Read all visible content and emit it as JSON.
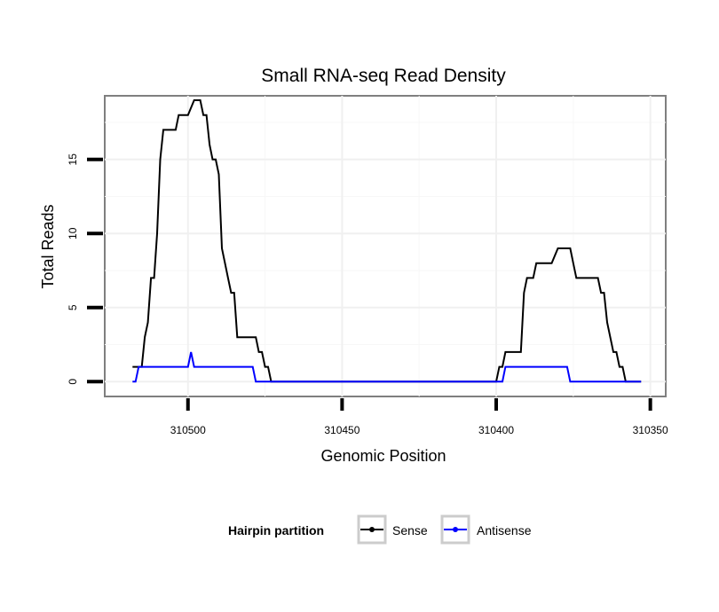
{
  "chart_data": {
    "type": "line",
    "title": "Small RNA-seq Read Density",
    "xlabel": "Genomic Position",
    "ylabel": "Total Reads",
    "x_reversed": true,
    "xlim": [
      310527,
      310345
    ],
    "ylim": [
      -1,
      19.3
    ],
    "xticks": [
      310500,
      310450,
      310400,
      310350
    ],
    "xtick_labels": [
      "310500",
      "310450",
      "310400",
      "310350"
    ],
    "yticks": [
      0,
      5,
      10,
      15
    ],
    "ytick_labels": [
      "0",
      "5",
      "10",
      "15"
    ],
    "grid": true,
    "legend": {
      "title": "Hairpin partition",
      "position": "bottom",
      "entries": [
        "Sense",
        "Antisense"
      ]
    },
    "series": [
      {
        "name": "Sense",
        "color": "#000000",
        "x": [
          310518,
          310516,
          310515,
          310514,
          310513,
          310512,
          310511,
          310510,
          310509,
          310508,
          310506,
          310504,
          310503,
          310502,
          310500,
          310498,
          310497,
          310496,
          310495,
          310494,
          310493,
          310492,
          310491,
          310490,
          310489,
          310487,
          310486,
          310485,
          310484,
          310482,
          310481,
          310480,
          310478,
          310477,
          310476,
          310475,
          310474,
          310473,
          310400,
          310399,
          310398,
          310397,
          310396,
          310394,
          310393,
          310392,
          310391,
          310390,
          310388,
          310387,
          310386,
          310385,
          310383,
          310382,
          310380,
          310378,
          310377,
          310376,
          310375,
          310374,
          310373,
          310372,
          310371,
          310370,
          310368,
          310367,
          310366,
          310365,
          310364,
          310363,
          310362,
          310361,
          310360,
          310359,
          310358,
          310355,
          310353
        ],
        "y": [
          1,
          1,
          1,
          3,
          4,
          7,
          7,
          10,
          15,
          17,
          17,
          17,
          18,
          18,
          18,
          19,
          19,
          19,
          18,
          18,
          16,
          15,
          15,
          14,
          9,
          7,
          6,
          6,
          3,
          3,
          3,
          3,
          3,
          2,
          2,
          1,
          1,
          0,
          0,
          1,
          1,
          2,
          2,
          2,
          2,
          2,
          6,
          7,
          7,
          8,
          8,
          8,
          8,
          8,
          9,
          9,
          9,
          9,
          8,
          7,
          7,
          7,
          7,
          7,
          7,
          7,
          6,
          6,
          4,
          3,
          2,
          2,
          1,
          1,
          0,
          0,
          0
        ]
      },
      {
        "name": "Antisense",
        "color": "#0000ff",
        "x": [
          310518,
          310517,
          310516,
          310515,
          310514,
          310513,
          310512,
          310510,
          310508,
          310506,
          310504,
          310502,
          310501,
          310500,
          310499,
          310498,
          310496,
          310494,
          310492,
          310490,
          310488,
          310486,
          310484,
          310482,
          310480,
          310479,
          310478,
          310476,
          310474,
          310400,
          310399,
          310398,
          310397,
          310396,
          310394,
          310392,
          310390,
          310388,
          310386,
          310384,
          310382,
          310380,
          310378,
          310377,
          310376,
          310374,
          310372,
          310370,
          310368,
          310366,
          310364,
          310362,
          310360,
          310358,
          310355,
          310353
        ],
        "y": [
          0,
          0,
          1,
          1,
          1,
          1,
          1,
          1,
          1,
          1,
          1,
          1,
          1,
          1,
          2,
          1,
          1,
          1,
          1,
          1,
          1,
          1,
          1,
          1,
          1,
          1,
          0,
          0,
          0,
          0,
          0,
          0,
          1,
          1,
          1,
          1,
          1,
          1,
          1,
          1,
          1,
          1,
          1,
          1,
          0,
          0,
          0,
          0,
          0,
          0,
          0,
          0,
          0,
          0,
          0,
          0
        ]
      }
    ]
  }
}
